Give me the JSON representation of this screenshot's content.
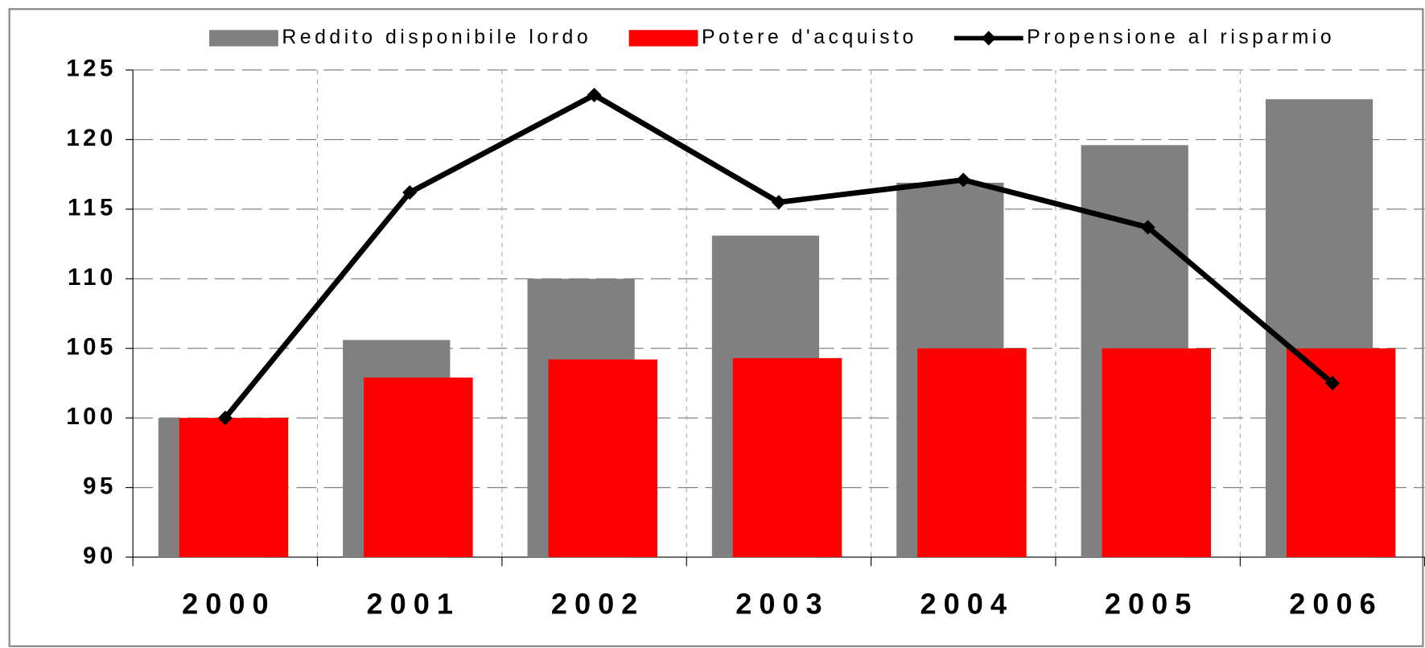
{
  "chart_data": {
    "type": "bar",
    "categories": [
      "2000",
      "2001",
      "2002",
      "2003",
      "2004",
      "2005",
      "2006"
    ],
    "series": [
      {
        "name": "Reddito disponibile lordo",
        "color": "#808080",
        "type": "bar",
        "values": [
          100,
          105.6,
          110,
          113.1,
          116.9,
          119.6,
          122.9
        ]
      },
      {
        "name": "Potere d'acquisto",
        "color": "#ff0000",
        "type": "bar",
        "values": [
          100,
          102.9,
          104.2,
          104.3,
          105,
          105,
          105
        ]
      },
      {
        "name": "Propensione al risparmio",
        "color": "#000000",
        "type": "line",
        "values": [
          100,
          116.2,
          123.2,
          115.5,
          117.1,
          113.7,
          102.5
        ]
      }
    ],
    "ylim": [
      90,
      125
    ],
    "yticks": [
      90,
      95,
      100,
      105,
      110,
      115,
      120,
      125
    ],
    "grid": true,
    "legend": "top"
  }
}
